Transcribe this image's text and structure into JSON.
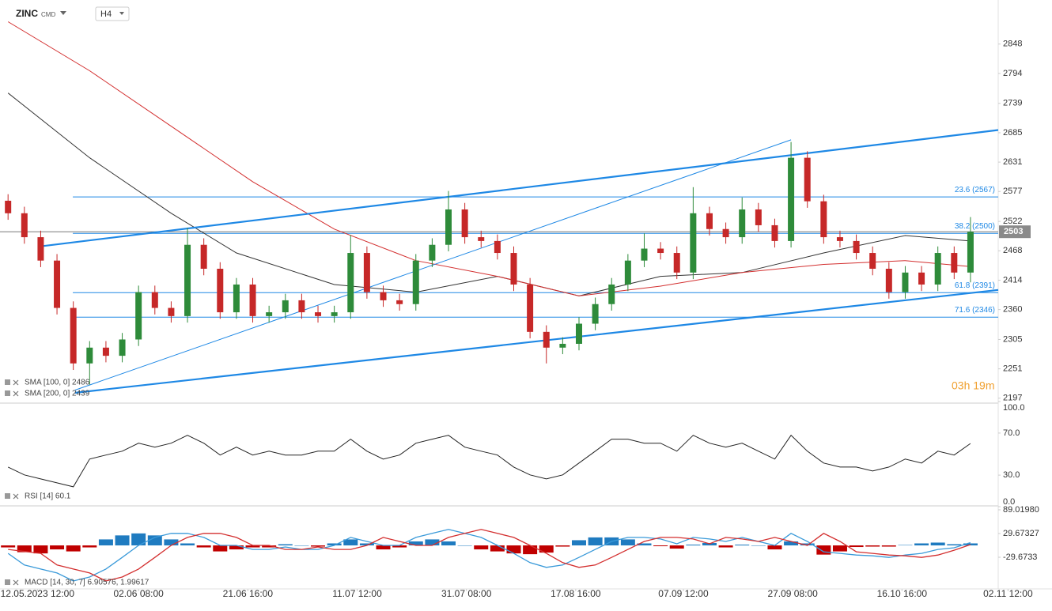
{
  "header": {
    "symbol": "ZINC",
    "symbol_type": "CMD",
    "interval": "H4"
  },
  "chart_data": [
    {
      "type": "candlestick",
      "x": [
        0,
        1,
        2,
        3,
        4,
        5,
        6,
        7,
        8,
        9,
        10,
        11,
        12,
        13,
        14,
        15,
        16,
        17,
        18,
        19,
        20,
        21,
        22,
        23,
        24,
        25,
        26,
        27,
        28,
        29,
        30,
        31,
        32,
        33,
        34,
        35,
        36,
        37,
        38,
        39,
        40,
        41,
        42,
        43,
        44,
        45,
        46,
        47,
        48,
        49,
        50,
        51,
        52,
        53,
        54,
        55,
        56,
        57,
        58,
        59
      ],
      "open": [
        2560,
        2537,
        2493,
        2450,
        2363,
        2261,
        2290,
        2275,
        2305,
        2392,
        2363,
        2348,
        2479,
        2435,
        2355,
        2406,
        2348,
        2355,
        2377,
        2355,
        2348,
        2355,
        2464,
        2392,
        2377,
        2370,
        2450,
        2479,
        2544,
        2493,
        2486,
        2464,
        2406,
        2319,
        2290,
        2297,
        2334,
        2370,
        2406,
        2450,
        2472,
        2464,
        2428,
        2537,
        2508,
        2493,
        2544,
        2515,
        2486,
        2639,
        2559,
        2493,
        2486,
        2464,
        2435,
        2392,
        2428,
        2406,
        2464,
        2428
      ],
      "high": [
        2572,
        2549,
        2505,
        2462,
        2375,
        2302,
        2302,
        2317,
        2404,
        2404,
        2375,
        2510,
        2491,
        2447,
        2418,
        2418,
        2367,
        2389,
        2389,
        2367,
        2367,
        2497,
        2476,
        2404,
        2389,
        2462,
        2491,
        2578,
        2556,
        2505,
        2498,
        2476,
        2418,
        2331,
        2309,
        2346,
        2382,
        2418,
        2462,
        2500,
        2484,
        2476,
        2585,
        2549,
        2520,
        2566,
        2556,
        2527,
        2668,
        2651,
        2571,
        2505,
        2498,
        2476,
        2447,
        2440,
        2440,
        2476,
        2476,
        2530
      ],
      "low": [
        2525,
        2481,
        2438,
        2351,
        2249,
        2222,
        2263,
        2263,
        2293,
        2351,
        2336,
        2336,
        2423,
        2343,
        2343,
        2336,
        2336,
        2343,
        2343,
        2336,
        2336,
        2343,
        2380,
        2365,
        2358,
        2358,
        2438,
        2467,
        2481,
        2474,
        2452,
        2394,
        2307,
        2261,
        2278,
        2285,
        2322,
        2358,
        2394,
        2438,
        2452,
        2416,
        2416,
        2496,
        2481,
        2481,
        2503,
        2474,
        2474,
        2547,
        2481,
        2474,
        2452,
        2423,
        2380,
        2380,
        2394,
        2394,
        2416,
        2410
      ],
      "close": [
        2537,
        2493,
        2450,
        2363,
        2261,
        2290,
        2275,
        2305,
        2392,
        2363,
        2348,
        2479,
        2435,
        2355,
        2406,
        2348,
        2355,
        2377,
        2355,
        2348,
        2355,
        2464,
        2392,
        2377,
        2370,
        2450,
        2479,
        2544,
        2493,
        2486,
        2464,
        2406,
        2319,
        2290,
        2297,
        2334,
        2370,
        2406,
        2450,
        2472,
        2464,
        2428,
        2537,
        2508,
        2493,
        2544,
        2515,
        2486,
        2639,
        2559,
        2493,
        2486,
        2464,
        2435,
        2392,
        2428,
        2406,
        2464,
        2428,
        2503
      ],
      "up_color": "#2e8b3a",
      "down_color": "#c62828",
      "series": [
        {
          "name": "SMA [100, 0] 2486",
          "color": "#333333",
          "x": [
            0,
            5,
            10,
            14,
            20,
            25,
            30,
            35,
            40,
            45,
            50,
            55,
            59
          ],
          "values": [
            2758,
            2639,
            2537,
            2464,
            2406,
            2392,
            2421,
            2385,
            2421,
            2428,
            2464,
            2496,
            2486
          ]
        },
        {
          "name": "SMA [200, 0] 2439",
          "color": "#d32f2f",
          "x": [
            0,
            5,
            10,
            15,
            20,
            25,
            30,
            35,
            40,
            45,
            50,
            55,
            59
          ],
          "values": [
            2889,
            2799,
            2697,
            2595,
            2508,
            2450,
            2421,
            2385,
            2403,
            2428,
            2443,
            2450,
            2439
          ]
        }
      ],
      "trend_lines": [
        {
          "color": "#1e88e5",
          "width": 2.2,
          "x": [
            1.93,
            60.7
          ],
          "y": [
            2476,
            2690
          ]
        },
        {
          "color": "#1e88e5",
          "width": 2.2,
          "x": [
            4.11,
            60.7
          ],
          "y": [
            2207,
            2396
          ]
        },
        {
          "color": "#1e88e5",
          "width": 1,
          "x": [
            4.11,
            48.0
          ],
          "y": [
            2212,
            2672
          ]
        }
      ],
      "fib_x": [
        3.97,
        60.7
      ],
      "fib_color": "#1e88e5",
      "fib_levels": [
        {
          "value": 2567,
          "label": "23.6 (2567)"
        },
        {
          "value": 2500,
          "label": "38.2 (2500)"
        },
        {
          "value": 2391,
          "label": "61.8 (2391)"
        },
        {
          "value": 2346,
          "label": "71.6 (2346)"
        }
      ],
      "last_price": 2503,
      "timer": "03h 19m",
      "xlim": [
        -0.3,
        60.7
      ],
      "ylim": [
        2188,
        2929
      ],
      "yticks": [
        2197,
        2251,
        2305,
        2360,
        2414,
        2468,
        2522,
        2577,
        2631,
        2685,
        2739,
        2794,
        2848
      ]
    },
    {
      "type": "line",
      "name": "RSI [14] 60.1",
      "color": "#222222",
      "x": [
        0,
        1,
        2,
        3,
        4,
        5,
        6,
        7,
        8,
        9,
        10,
        11,
        12,
        13,
        14,
        15,
        16,
        17,
        18,
        19,
        20,
        21,
        22,
        23,
        24,
        25,
        26,
        27,
        28,
        29,
        30,
        31,
        32,
        33,
        34,
        35,
        36,
        37,
        38,
        39,
        40,
        41,
        42,
        43,
        44,
        45,
        46,
        47,
        48,
        49,
        50,
        51,
        52,
        53,
        54,
        55,
        56,
        57,
        58,
        59
      ],
      "values": [
        37.7,
        30.2,
        26.4,
        22.6,
        18.9,
        45.3,
        49.1,
        52.8,
        60.4,
        56.6,
        60.4,
        67.9,
        60.4,
        49.1,
        56.6,
        49.1,
        52.8,
        49.1,
        49.1,
        52.8,
        52.8,
        64.2,
        52.8,
        45.3,
        49.1,
        60.4,
        64.2,
        67.9,
        56.6,
        52.8,
        49.1,
        37.7,
        30.2,
        26.4,
        30.2,
        41.5,
        52.8,
        64.2,
        64.2,
        60.4,
        60.4,
        52.8,
        67.9,
        60.4,
        56.6,
        60.4,
        52.8,
        45.3,
        67.9,
        52.8,
        41.5,
        37.7,
        37.7,
        34.0,
        37.7,
        45.3,
        41.5,
        52.8,
        49.1,
        60.1
      ],
      "xlim": [
        -0.3,
        60.7
      ],
      "ylim": [
        0,
        100
      ],
      "yticks": [
        {
          "value": 100,
          "label": "100.0"
        },
        {
          "value": 70,
          "label": "70.0"
        },
        {
          "value": 30,
          "label": "30.0"
        },
        {
          "value": 0,
          "label": "0.0"
        }
      ]
    },
    {
      "type": "macd",
      "name": "MACD [14, 30, 7] 6.90576, 1.99617",
      "x": [
        0,
        1,
        2,
        3,
        4,
        5,
        6,
        7,
        8,
        9,
        10,
        11,
        12,
        13,
        14,
        15,
        16,
        17,
        18,
        19,
        20,
        21,
        22,
        23,
        24,
        25,
        26,
        27,
        28,
        29,
        30,
        31,
        32,
        33,
        34,
        35,
        36,
        37,
        38,
        39,
        40,
        41,
        42,
        43,
        44,
        45,
        46,
        47,
        48,
        49,
        50,
        51,
        52,
        53,
        54,
        55,
        56,
        57,
        58,
        59
      ],
      "macd": [
        -20,
        -49,
        -59,
        -69,
        -89,
        -79,
        -59,
        -30,
        0,
        20,
        30,
        30,
        20,
        0,
        0,
        -10,
        -10,
        -4,
        -10,
        -10,
        0,
        20,
        10,
        0,
        0,
        20,
        30,
        40,
        30,
        20,
        0,
        -20,
        -43,
        -55,
        -49,
        -30,
        -10,
        10,
        20,
        20,
        16,
        4,
        20,
        16,
        10,
        20,
        10,
        0,
        30,
        10,
        -16,
        -20,
        -24,
        -26,
        -30,
        -24,
        -20,
        -10,
        -6,
        6.90576
      ],
      "signal": [
        -10,
        -15,
        -20,
        -49,
        -59,
        -69,
        -89,
        -79,
        -59,
        -30,
        0,
        20,
        30,
        30,
        20,
        0,
        0,
        -10,
        -10,
        -4,
        -10,
        -10,
        0,
        20,
        10,
        0,
        0,
        20,
        30,
        40,
        30,
        20,
        0,
        -20,
        -43,
        -55,
        -49,
        -30,
        -10,
        10,
        20,
        20,
        16,
        4,
        20,
        16,
        10,
        20,
        10,
        0,
        30,
        10,
        -16,
        -20,
        -24,
        -26,
        -30,
        -24,
        -12,
        1.99617
      ],
      "histogram": [
        -5,
        -17,
        -20,
        -10,
        -15,
        -5,
        15,
        25,
        30,
        25,
        15,
        5,
        -5,
        -15,
        -10,
        -5,
        -5,
        3,
        0,
        -3,
        5,
        15,
        5,
        -10,
        -5,
        10,
        15,
        10,
        0,
        -10,
        -15,
        -20,
        -22,
        -18,
        -3,
        13,
        20,
        20,
        15,
        5,
        -2,
        -8,
        2,
        6,
        -5,
        2,
        0,
        -10,
        10,
        5,
        -23,
        -15,
        -4,
        -3,
        -3,
        1,
        5,
        7,
        3,
        5
      ],
      "macd_color": "#3a9ad9",
      "signal_color": "#d32f2f",
      "hist_up_color": "#1f7bc0",
      "hist_down_color": "#c00000",
      "xlim": [
        -0.3,
        60.7
      ],
      "ylim": [
        -108.7,
        94.9
      ],
      "yticks": [
        {
          "value": 89.0198,
          "label": "89.01980"
        },
        29.67327,
        -29.6733
      ],
      "xticks": [
        {
          "value": 1.8,
          "label": "12.05.2023 12:00"
        },
        {
          "value": 8.0,
          "label": "02.06 08:00"
        },
        {
          "value": 14.7,
          "label": "21.06 16:00"
        },
        {
          "value": 21.4,
          "label": "11.07 12:00"
        },
        {
          "value": 28.1,
          "label": "31.07 08:00"
        },
        {
          "value": 34.8,
          "label": "17.08 16:00"
        },
        {
          "value": 41.4,
          "label": "07.09 12:00"
        },
        {
          "value": 48.1,
          "label": "27.09 08:00"
        },
        {
          "value": 54.8,
          "label": "16.10 16:00"
        },
        {
          "value": 61.3,
          "label": "02.11 12:00"
        }
      ]
    }
  ]
}
